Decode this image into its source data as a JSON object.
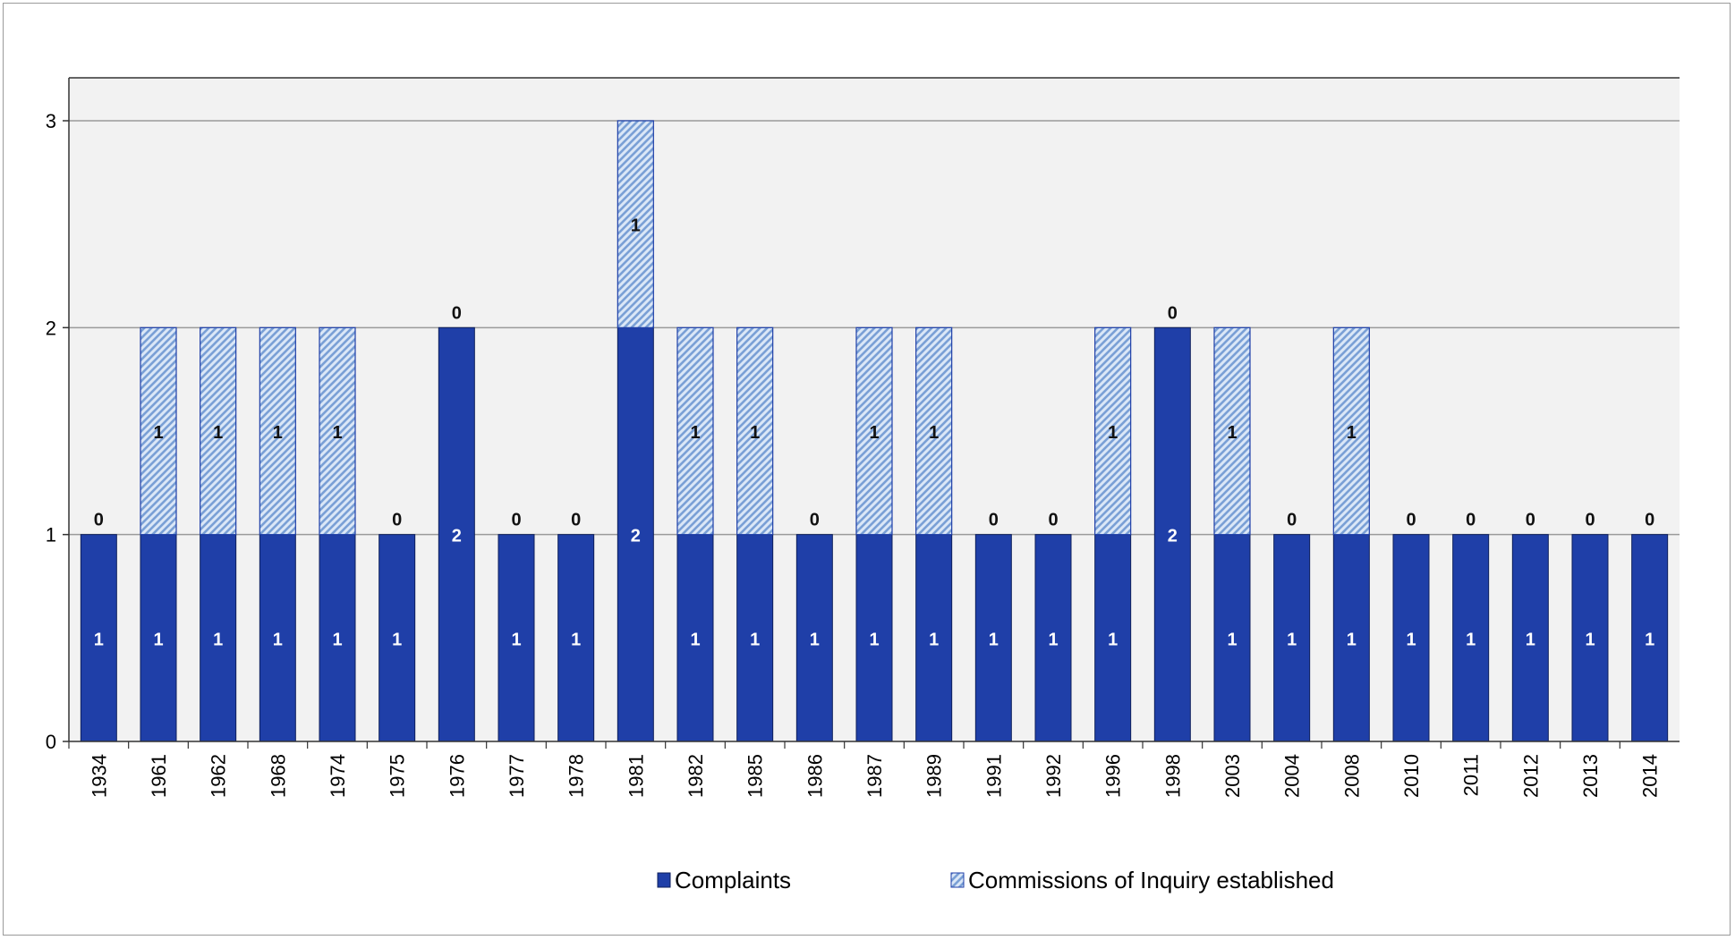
{
  "chart_data": {
    "type": "bar",
    "stacked": true,
    "categories": [
      "1934",
      "1961",
      "1962",
      "1968",
      "1974",
      "1975",
      "1976",
      "1977",
      "1978",
      "1981",
      "1982",
      "1985",
      "1986",
      "1987",
      "1989",
      "1991",
      "1992",
      "1996",
      "1998",
      "2003",
      "2004",
      "2008",
      "2010",
      "2011",
      "2012",
      "2013",
      "2014"
    ],
    "series": [
      {
        "name": "Complaints",
        "values": [
          1,
          1,
          1,
          1,
          1,
          1,
          2,
          1,
          1,
          2,
          1,
          1,
          1,
          1,
          1,
          1,
          1,
          1,
          2,
          1,
          1,
          1,
          1,
          1,
          1,
          1,
          1
        ]
      },
      {
        "name": "Commissions of Inquiry established",
        "values": [
          0,
          1,
          1,
          1,
          1,
          0,
          0,
          0,
          0,
          1,
          1,
          1,
          0,
          1,
          1,
          0,
          0,
          1,
          0,
          1,
          0,
          1,
          0,
          0,
          0,
          0,
          0
        ]
      }
    ],
    "ylim": [
      0,
      3
    ],
    "yticks": [
      0,
      1,
      2,
      3
    ],
    "grid": true,
    "legend_position": "bottom",
    "colors": {
      "complaints": "#1f3fa8",
      "commissions_fill": "#dbe7f7",
      "commissions_hatch": "#7aa0d6",
      "plot_background": "#f2f2f2",
      "gridline": "#9a9a9a"
    }
  }
}
